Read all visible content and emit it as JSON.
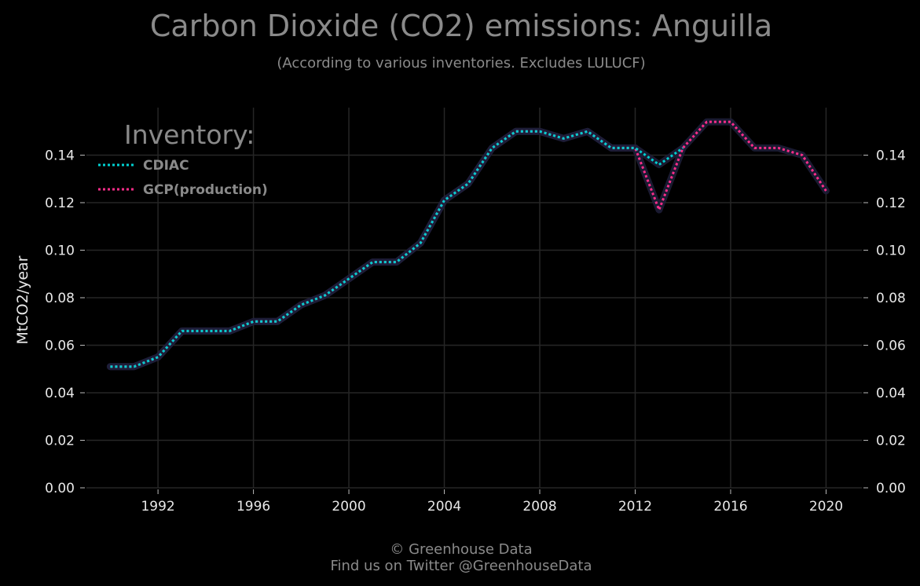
{
  "chart_data": {
    "type": "line",
    "title": "Carbon Dioxide (CO2) emissions: Anguilla",
    "subtitle": "(According to various inventories. Excludes LULUCF)",
    "ylabel": "MtCO2/year",
    "xlim": [
      1989,
      2021.5
    ],
    "ylim": [
      0,
      0.16
    ],
    "xticks": [
      1992,
      1996,
      2000,
      2004,
      2008,
      2012,
      2016,
      2020
    ],
    "yticks": [
      0.0,
      0.02,
      0.04,
      0.06,
      0.08,
      0.1,
      0.12,
      0.14
    ],
    "xtick_labels": [
      "1992",
      "1996",
      "2000",
      "2004",
      "2008",
      "2012",
      "2016",
      "2020"
    ],
    "ytick_labels": [
      "0.00",
      "0.02",
      "0.04",
      "0.06",
      "0.08",
      "0.10",
      "0.12",
      "0.14"
    ],
    "grid": true,
    "legend": {
      "title": "Inventory:",
      "placement": "top-left"
    },
    "series": [
      {
        "name": "CDIAC",
        "color": "#00d0d0",
        "x": [
          1990,
          1991,
          1992,
          1993,
          1994,
          1995,
          1996,
          1997,
          1998,
          1999,
          2000,
          2001,
          2002,
          2003,
          2004,
          2005,
          2006,
          2007,
          2008,
          2009,
          2010,
          2011,
          2012,
          2013,
          2014
        ],
        "values": [
          0.051,
          0.051,
          0.055,
          0.066,
          0.066,
          0.066,
          0.07,
          0.07,
          0.077,
          0.081,
          0.088,
          0.095,
          0.095,
          0.103,
          0.121,
          0.128,
          0.143,
          0.15,
          0.15,
          0.147,
          0.15,
          0.143,
          0.143,
          0.136,
          0.143
        ]
      },
      {
        "name": "GCP(production)",
        "color": "#ff2d8a",
        "x": [
          1990,
          1991,
          1992,
          1993,
          1994,
          1995,
          1996,
          1997,
          1998,
          1999,
          2000,
          2001,
          2002,
          2003,
          2004,
          2005,
          2006,
          2007,
          2008,
          2009,
          2010,
          2011,
          2012,
          2013,
          2014,
          2015,
          2016,
          2017,
          2018,
          2019,
          2020
        ],
        "values": [
          0.051,
          0.051,
          0.055,
          0.066,
          0.066,
          0.066,
          0.07,
          0.07,
          0.077,
          0.081,
          0.088,
          0.095,
          0.095,
          0.103,
          0.121,
          0.128,
          0.143,
          0.15,
          0.15,
          0.147,
          0.15,
          0.143,
          0.143,
          0.117,
          0.143,
          0.154,
          0.154,
          0.143,
          0.143,
          0.14,
          0.125
        ]
      }
    ]
  },
  "footer": {
    "line1": "© Greenhouse Data",
    "line2": "Find us on Twitter @GreenhouseData"
  }
}
